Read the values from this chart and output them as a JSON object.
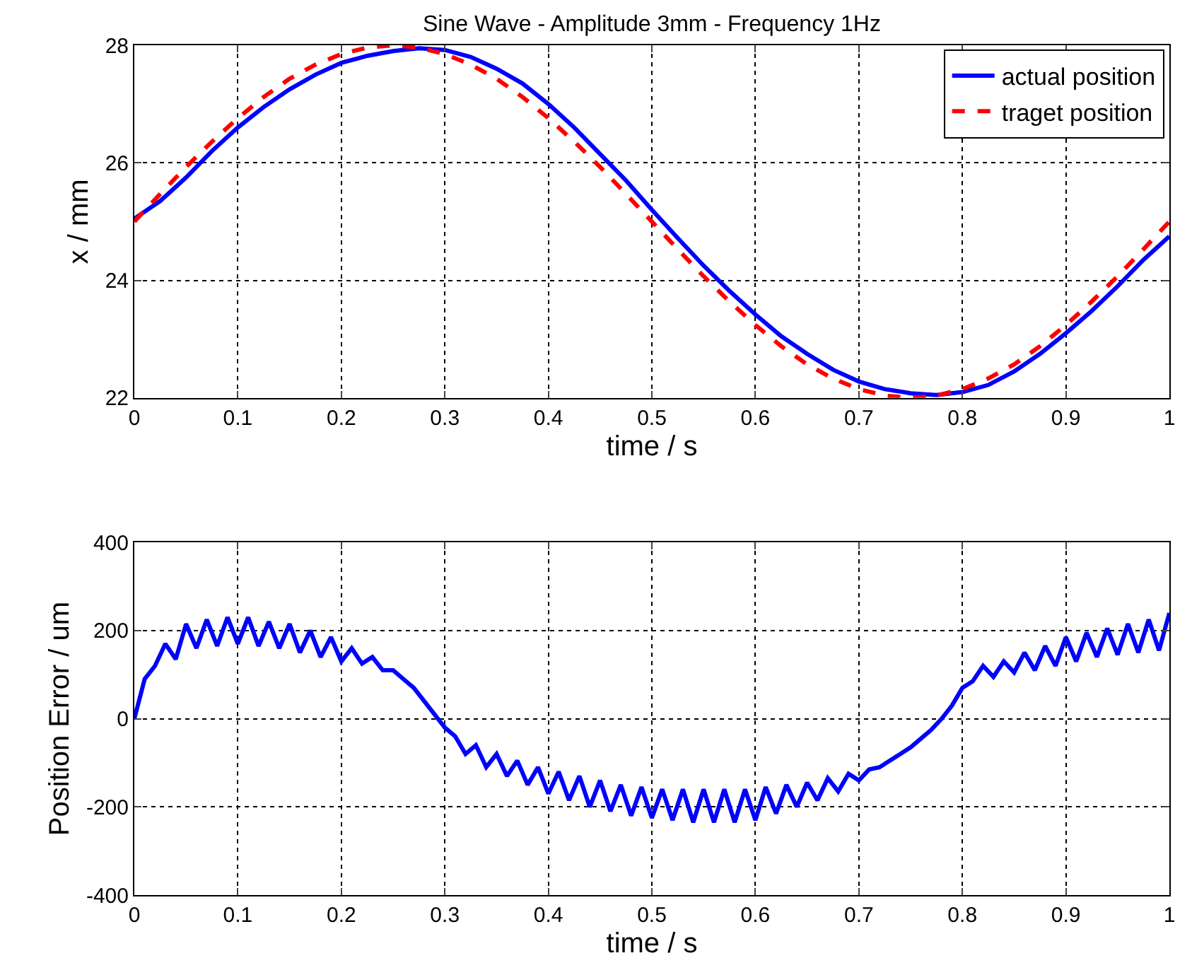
{
  "chart_data": [
    {
      "type": "line",
      "title": "Sine Wave - Amplitude 3mm - Frequency 1Hz",
      "xlabel": "time / s",
      "ylabel": "x / mm",
      "xlim": [
        0,
        1
      ],
      "xticks": [
        0,
        0.1,
        0.2,
        0.3,
        0.4,
        0.5,
        0.6,
        0.7,
        0.8,
        0.9,
        1
      ],
      "ylim": [
        22,
        28
      ],
      "yticks": [
        22,
        24,
        26,
        28
      ],
      "grid": true,
      "legend": "top right",
      "marker": "none",
      "x": [
        0,
        0.025,
        0.05,
        0.075,
        0.1,
        0.125,
        0.15,
        0.175,
        0.2,
        0.225,
        0.25,
        0.275,
        0.3,
        0.325,
        0.35,
        0.375,
        0.4,
        0.425,
        0.45,
        0.475,
        0.5,
        0.525,
        0.55,
        0.575,
        0.6,
        0.625,
        0.65,
        0.675,
        0.7,
        0.725,
        0.75,
        0.775,
        0.8,
        0.825,
        0.85,
        0.875,
        0.9,
        0.925,
        0.95,
        0.975,
        1
      ],
      "series": [
        {
          "name": "actual position",
          "color": "#0000ff",
          "line_style": "solid",
          "values": [
            25.05,
            25.35,
            25.75,
            26.2,
            26.6,
            26.95,
            27.25,
            27.5,
            27.7,
            27.82,
            27.9,
            27.95,
            27.92,
            27.8,
            27.6,
            27.35,
            27.0,
            26.6,
            26.15,
            25.7,
            25.2,
            24.72,
            24.25,
            23.82,
            23.42,
            23.05,
            22.75,
            22.48,
            22.28,
            22.15,
            22.08,
            22.05,
            22.1,
            22.22,
            22.45,
            22.75,
            23.1,
            23.48,
            23.9,
            24.35,
            24.75
          ]
        },
        {
          "name": "traget position",
          "color": "#ff0000",
          "line_style": "dashed",
          "values": [
            25.0,
            25.47,
            25.93,
            26.36,
            26.76,
            27.12,
            27.43,
            27.67,
            27.85,
            27.96,
            28.0,
            27.96,
            27.85,
            27.67,
            27.43,
            27.12,
            26.76,
            26.36,
            25.93,
            25.47,
            25.0,
            24.53,
            24.07,
            23.64,
            23.24,
            22.88,
            22.57,
            22.33,
            22.15,
            22.04,
            22.0,
            22.04,
            22.15,
            22.33,
            22.57,
            22.88,
            23.24,
            23.64,
            24.07,
            24.53,
            25.0
          ]
        }
      ]
    },
    {
      "type": "line",
      "xlabel": "time / s",
      "ylabel": "Position Error / um",
      "xlim": [
        0,
        1
      ],
      "xticks": [
        0,
        0.1,
        0.2,
        0.3,
        0.4,
        0.5,
        0.6,
        0.7,
        0.8,
        0.9,
        1
      ],
      "ylim": [
        -400,
        400
      ],
      "yticks": [
        -400,
        -200,
        0,
        200,
        400
      ],
      "grid": true,
      "marker": "none",
      "x": [
        0,
        0.01,
        0.02,
        0.03,
        0.04,
        0.05,
        0.06,
        0.07,
        0.08,
        0.09,
        0.1,
        0.11,
        0.12,
        0.13,
        0.14,
        0.15,
        0.16,
        0.17,
        0.18,
        0.19,
        0.2,
        0.21,
        0.22,
        0.23,
        0.24,
        0.25,
        0.26,
        0.27,
        0.28,
        0.29,
        0.3,
        0.31,
        0.32,
        0.33,
        0.34,
        0.35,
        0.36,
        0.37,
        0.38,
        0.39,
        0.4,
        0.41,
        0.42,
        0.43,
        0.44,
        0.45,
        0.46,
        0.47,
        0.48,
        0.49,
        0.5,
        0.51,
        0.52,
        0.53,
        0.54,
        0.55,
        0.56,
        0.57,
        0.58,
        0.59,
        0.6,
        0.61,
        0.62,
        0.63,
        0.64,
        0.65,
        0.66,
        0.67,
        0.68,
        0.69,
        0.7,
        0.71,
        0.72,
        0.73,
        0.74,
        0.75,
        0.76,
        0.77,
        0.78,
        0.79,
        0.8,
        0.81,
        0.82,
        0.83,
        0.84,
        0.85,
        0.86,
        0.87,
        0.88,
        0.89,
        0.9,
        0.91,
        0.92,
        0.93,
        0.94,
        0.95,
        0.96,
        0.97,
        0.98,
        0.99,
        1
      ],
      "series": [
        {
          "color": "#0000ff",
          "line_style": "solid",
          "values": [
            0,
            90,
            120,
            170,
            135,
            215,
            160,
            225,
            165,
            230,
            170,
            230,
            165,
            220,
            160,
            215,
            150,
            200,
            140,
            185,
            130,
            160,
            125,
            140,
            110,
            110,
            90,
            70,
            40,
            10,
            -20,
            -40,
            -80,
            -60,
            -110,
            -80,
            -130,
            -95,
            -150,
            -110,
            -170,
            -120,
            -185,
            -130,
            -200,
            -140,
            -210,
            -150,
            -220,
            -155,
            -225,
            -160,
            -230,
            -160,
            -235,
            -160,
            -235,
            -160,
            -235,
            -160,
            -230,
            -155,
            -215,
            -150,
            -200,
            -145,
            -185,
            -135,
            -165,
            -125,
            -140,
            -115,
            -110,
            -95,
            -80,
            -65,
            -45,
            -25,
            0,
            30,
            70,
            85,
            120,
            95,
            130,
            105,
            150,
            110,
            165,
            120,
            185,
            130,
            195,
            140,
            205,
            145,
            215,
            150,
            225,
            155,
            240
          ]
        }
      ]
    }
  ]
}
